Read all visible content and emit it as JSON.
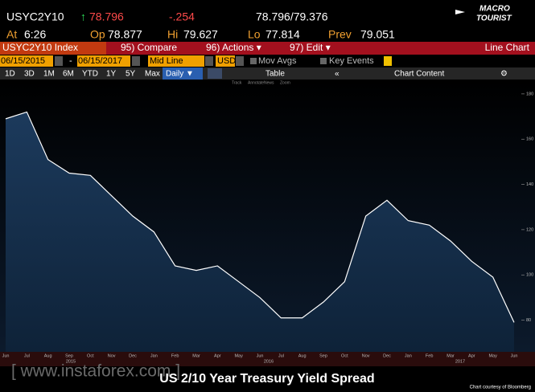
{
  "header": {
    "ticker": "USYC2Y10",
    "last": "78.796",
    "change": "-.254",
    "bid_ask": "78.796/79.376",
    "at_label": "At",
    "at": "6:26",
    "open_label": "Op",
    "open": "78.877",
    "high_label": "Hi",
    "high": "79.627",
    "low_label": "Lo",
    "low": "77.814",
    "prev_label": "Prev",
    "prev": "79.051",
    "logo_top": "MACRO",
    "logo_bottom": "TOURIST"
  },
  "menu": {
    "security": "USYC2Y10 Index",
    "compare": "95) Compare",
    "actions": "96) Actions ▾",
    "edit": "97) Edit ▾",
    "view": "Line Chart"
  },
  "settings": {
    "start": "06/15/2015",
    "dash": "-",
    "end": "06/15/2017",
    "mode": "Mid Line",
    "currency": "USD",
    "mov_avgs": "Mov Avgs",
    "key_events": "Key Events"
  },
  "toolbar": {
    "ranges": [
      "1D",
      "3D",
      "1M",
      "6M",
      "YTD",
      "1Y",
      "5Y",
      "Max"
    ],
    "period": "Daily ▼",
    "table": "Table",
    "chart_content": "Chart Content",
    "tools": [
      "Track",
      "Annotate",
      "News",
      "Zoom"
    ]
  },
  "chart_data": {
    "type": "line",
    "categories": [
      "Jun",
      "Jul",
      "Aug",
      "Sep",
      "Oct",
      "Nov",
      "Dec",
      "Jan",
      "Feb",
      "Mar",
      "Apr",
      "May",
      "Jun",
      "Jul",
      "Aug",
      "Sep",
      "Oct",
      "Nov",
      "Dec",
      "Jan",
      "Feb",
      "Mar",
      "Apr",
      "May",
      "Jun"
    ],
    "years": [
      "2015",
      "2016",
      "2017"
    ],
    "series": [
      {
        "name": "USYC2Y10",
        "color": "#ffffff",
        "values": [
          169,
          172,
          151,
          145,
          144,
          135,
          126,
          119,
          104,
          102,
          104,
          97,
          90,
          81,
          81,
          88,
          97,
          126,
          133,
          124,
          122,
          115,
          106,
          99,
          79
        ]
      }
    ],
    "ylim": [
      66,
      186
    ],
    "yticks": [
      80,
      100,
      120,
      140,
      160,
      180
    ]
  },
  "footer": {
    "watermark": "[ www.instaforex.com ]",
    "caption": "US 2/10 Year Treasury Yield Spread",
    "credit": "Chart courtesy of Bloomberg"
  }
}
